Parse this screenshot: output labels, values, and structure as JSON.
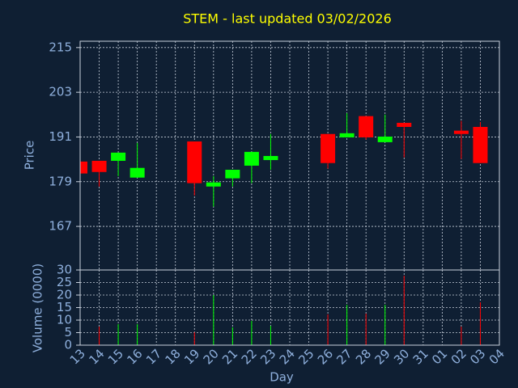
{
  "chart_data": {
    "type": "candlestick",
    "title": "STEM - last updated 03/02/2026",
    "xlabel": "Day",
    "ylabel": "Price",
    "categories": [
      "13",
      "14",
      "15",
      "16",
      "17",
      "18",
      "19",
      "20",
      "21",
      "22",
      "23",
      "24",
      "25",
      "26",
      "27",
      "28",
      "29",
      "30",
      "31",
      "01",
      "02",
      "03",
      "04"
    ],
    "open": [
      184.4,
      184.6,
      184.6,
      180.1,
      null,
      null,
      189.8,
      177.7,
      179.9,
      183.3,
      184.8,
      null,
      null,
      191.8,
      190.9,
      196.6,
      189.6,
      194.8,
      null,
      null,
      192.7,
      193.7,
      null
    ],
    "high": [
      184.4,
      184.6,
      186.8,
      189.4,
      null,
      null,
      189.8,
      180.5,
      182.2,
      187.0,
      191.8,
      null,
      null,
      191.8,
      197.4,
      196.6,
      197.0,
      194.8,
      null,
      null,
      195.3,
      195.0,
      null
    ],
    "low": [
      181.2,
      177.7,
      180.5,
      180.1,
      null,
      null,
      175.3,
      172.3,
      177.7,
      178.6,
      182.2,
      null,
      null,
      182.5,
      190.9,
      190.3,
      189.6,
      185.5,
      null,
      null,
      185.1,
      184.0,
      null
    ],
    "close": [
      181.2,
      181.6,
      186.8,
      182.7,
      null,
      null,
      178.6,
      178.8,
      182.2,
      187.0,
      185.9,
      null,
      null,
      184.0,
      192.0,
      190.9,
      191.1,
      193.7,
      null,
      null,
      191.8,
      184.0,
      null
    ],
    "up_color": "#00ff00",
    "down_color": "#ff0000",
    "ylim": [
      155.3,
      216.7
    ],
    "yticks": [
      167,
      179,
      191,
      203,
      215
    ],
    "grid": true,
    "volume": {
      "ylabel": "Volume (0000)",
      "values": [
        null,
        7.4,
        8.4,
        8.4,
        null,
        null,
        5.2,
        20,
        7.1,
        9.7,
        7.7,
        null,
        null,
        12.3,
        16.1,
        12.6,
        16.1,
        27.7,
        null,
        null,
        7.4,
        17.1,
        null
      ],
      "ylim": [
        0,
        30
      ],
      "yticks": [
        0,
        5,
        10,
        15,
        20,
        25,
        30
      ]
    }
  }
}
